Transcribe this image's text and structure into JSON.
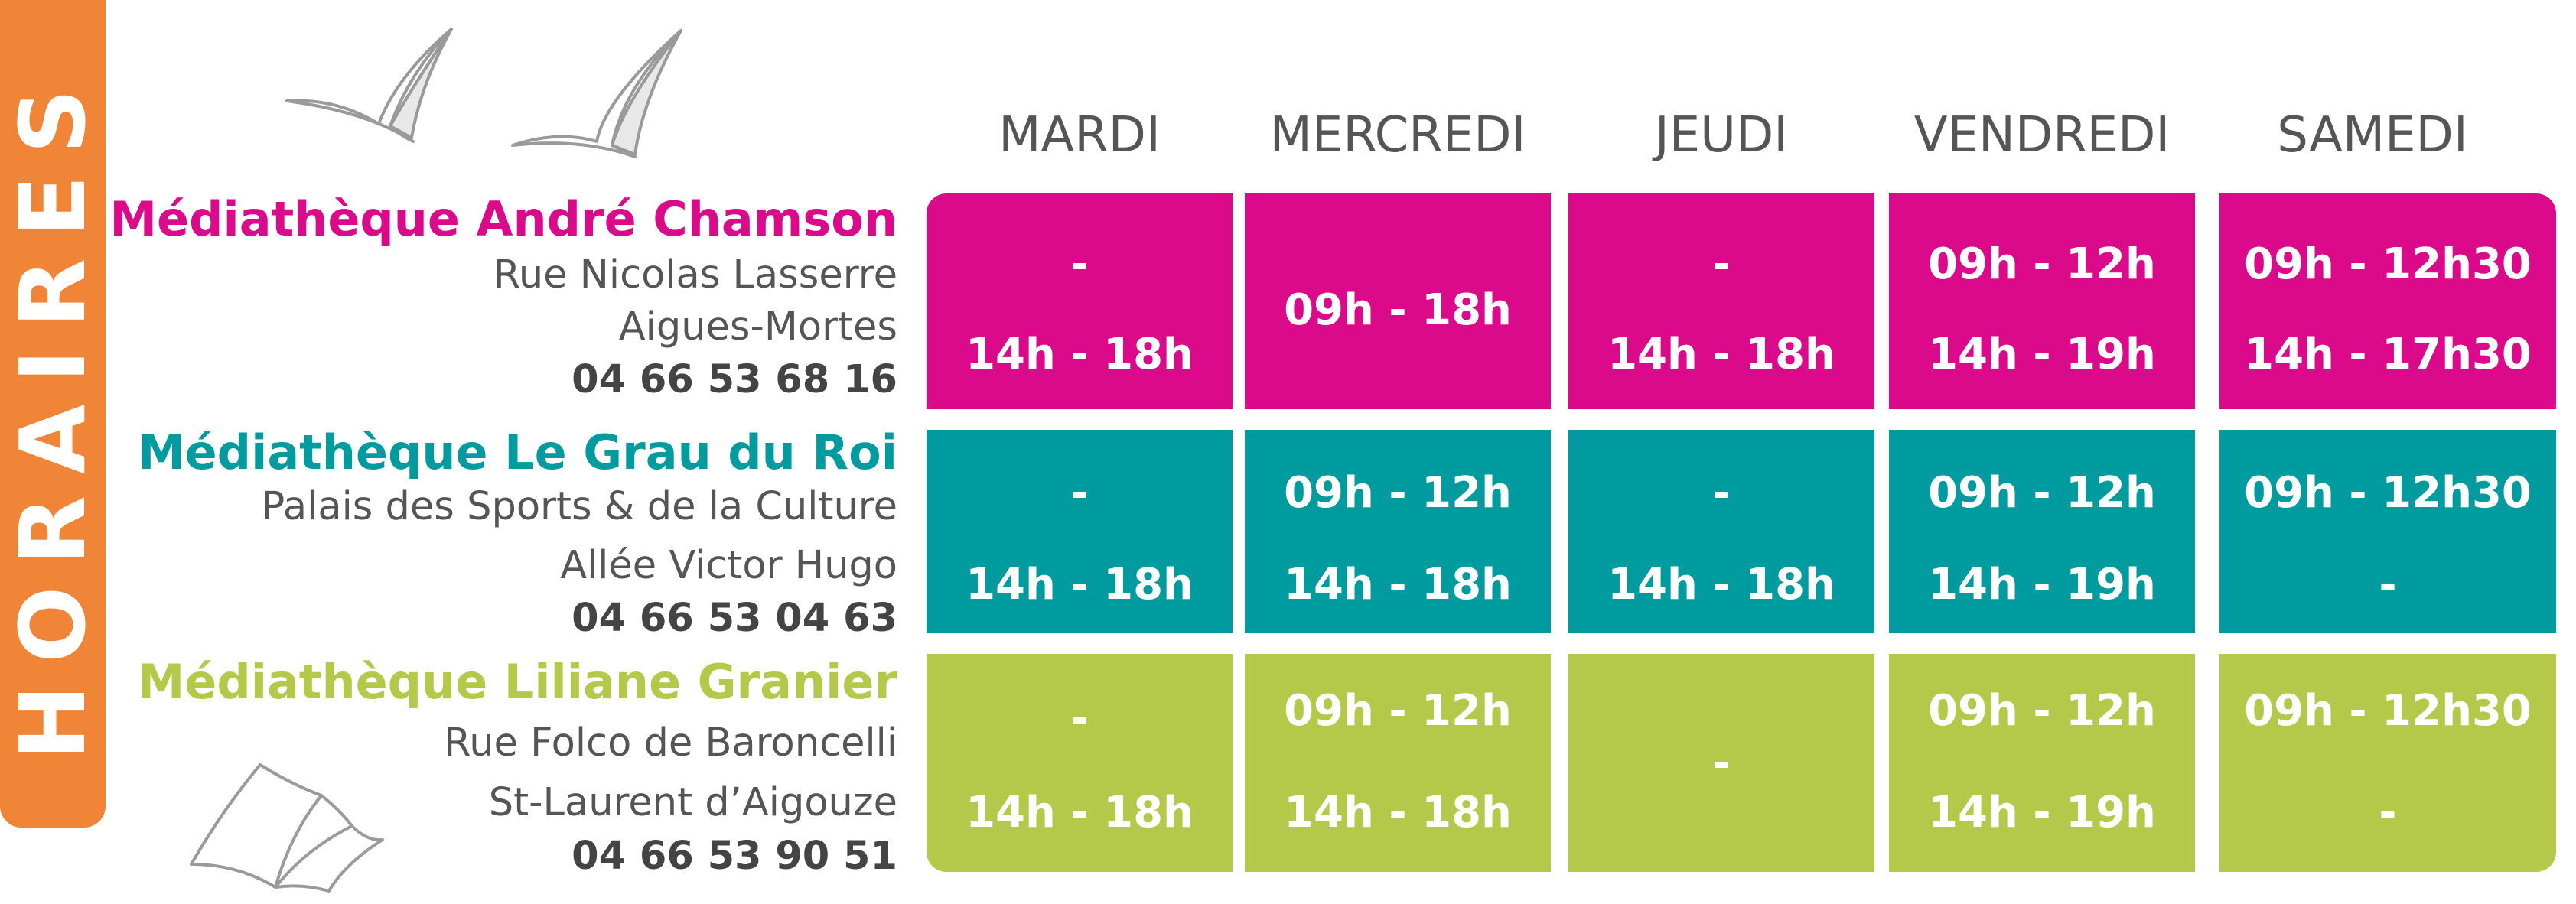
{
  "sidebar": {
    "label": "HORAIRES"
  },
  "colors": {
    "orange": "#f08537",
    "magenta": "#db0a8b",
    "teal": "#009b9e",
    "green": "#b4c84a"
  },
  "days": [
    "MARDI",
    "MERCREDI",
    "JEUDI",
    "VENDREDI",
    "SAMEDI"
  ],
  "libraries": [
    {
      "name": "Médiathèque André Chamson",
      "lines": [
        "Rue Nicolas Lasserre",
        "Aigues-Mortes"
      ],
      "phone": "04 66 53 68 16",
      "color": "#db0a8b",
      "hours": [
        [
          "-",
          "14h - 18h"
        ],
        [
          "09h - 18h"
        ],
        [
          "-",
          "14h - 18h"
        ],
        [
          "09h - 12h",
          "14h - 19h"
        ],
        [
          "09h - 12h30",
          "14h - 17h30"
        ]
      ]
    },
    {
      "name": "Médiathèque Le Grau du Roi",
      "lines": [
        "Palais des Sports & de la Culture",
        "Allée Victor Hugo"
      ],
      "phone": "04 66 53 04 63",
      "color": "#009b9e",
      "hours": [
        [
          "-",
          "14h - 18h"
        ],
        [
          "09h - 12h",
          "14h - 18h"
        ],
        [
          "-",
          "14h - 18h"
        ],
        [
          "09h - 12h",
          "14h - 19h"
        ],
        [
          "09h - 12h30",
          "-"
        ]
      ]
    },
    {
      "name": "Médiathèque Liliane Granier",
      "lines": [
        "Rue Folco de Baroncelli",
        "St-Laurent d’Aigouze"
      ],
      "phone": "04 66 53 90 51",
      "color": "#b4c84a",
      "hours": [
        [
          "-",
          "14h - 18h"
        ],
        [
          "09h - 12h",
          "14h - 18h"
        ],
        [
          "-"
        ],
        [
          "09h - 12h",
          "14h - 19h"
        ],
        [
          "09h - 12h30",
          "-"
        ]
      ]
    }
  ],
  "icons": {
    "top": "seagulls-icon",
    "bottom": "open-book-icon"
  }
}
